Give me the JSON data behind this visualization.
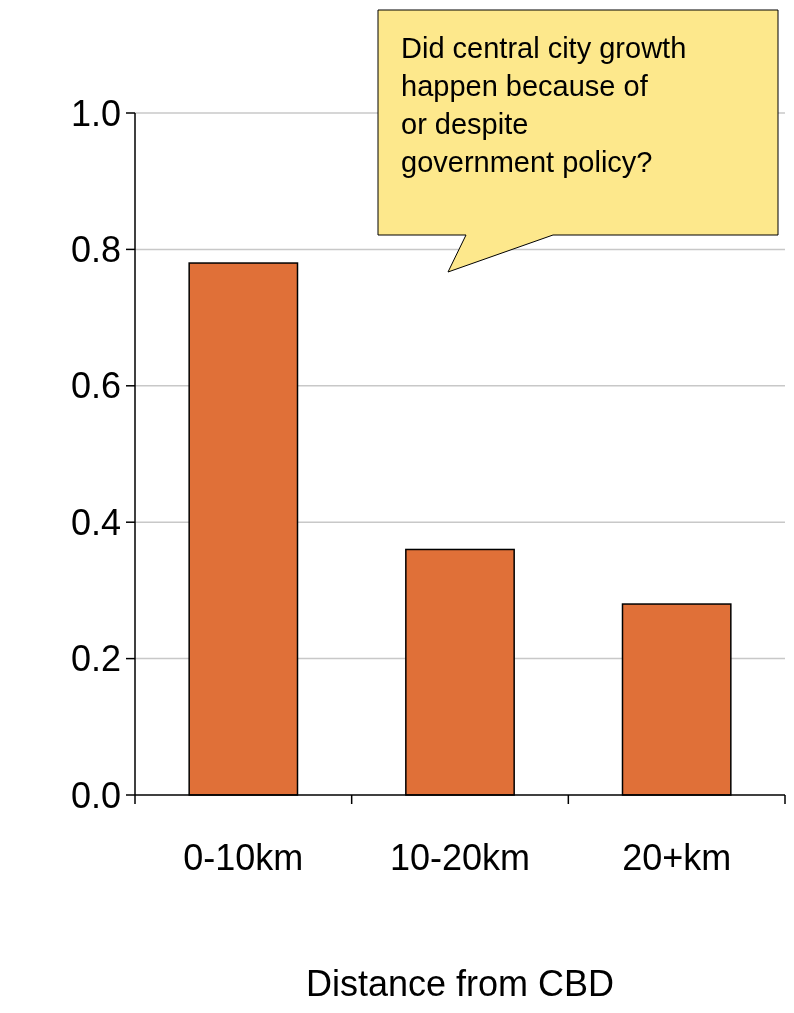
{
  "chart_data": {
    "type": "bar",
    "xlabel": "Distance from CBD",
    "categories": [
      "0-10km",
      "10-20km",
      "20+km"
    ],
    "values": [
      0.78,
      0.36,
      0.28
    ],
    "color": "#e07038",
    "ylim": [
      0,
      1
    ],
    "yticks": [
      {
        "value": 0,
        "label": "0.0"
      },
      {
        "value": 0.2,
        "label": "0.2"
      },
      {
        "value": 0.4,
        "label": "0.4"
      },
      {
        "value": 0.6,
        "label": "0.6"
      },
      {
        "value": 0.8,
        "label": "0.8"
      },
      {
        "value": 1,
        "label": "1.0"
      }
    ],
    "grid": "y",
    "annotations": [
      "Did central city growth\nhappen because of\nor despite\ngovernment policy?"
    ]
  }
}
